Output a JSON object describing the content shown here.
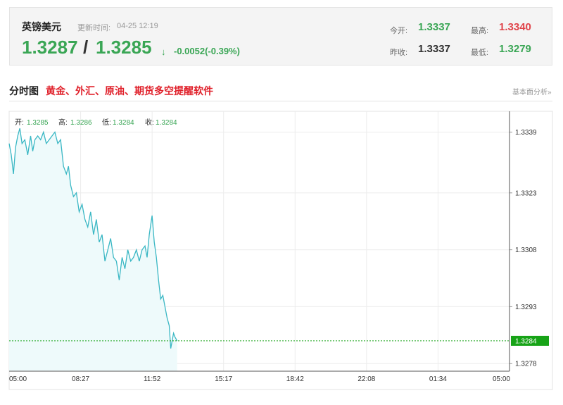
{
  "quote": {
    "name": "英镑美元",
    "update_label": "更新时间:",
    "update_time": "04-25 12:19",
    "bid": "1.3287",
    "slash": "/",
    "ask": "1.3285",
    "arrow": "↓",
    "change": "-0.0052(-0.39%)",
    "open_label": "今开:",
    "open": "1.3337",
    "high_label": "最高:",
    "high": "1.3340",
    "prev_close_label": "昨收:",
    "prev_close": "1.3337",
    "low_label": "最低:",
    "low": "1.3279"
  },
  "section": {
    "title": "分时图",
    "promo": "黄金、外汇、原油、期货多空提醒软件",
    "analysis_link": "基本面分析»"
  },
  "ohlc": {
    "open_label": "开:",
    "open": "1.3285",
    "high_label": "高:",
    "high": "1.3286",
    "low_label": "低:",
    "low": "1.3284",
    "close_label": "收:",
    "close": "1.3284"
  },
  "colors": {
    "line": "#3ab7c4",
    "fill": "#eefafb",
    "up": "#3aa655",
    "down": "#e0444a",
    "current_tag": "#17a317"
  },
  "chart_data": {
    "type": "line",
    "title": "",
    "xlabel": "",
    "ylabel": "",
    "x_ticks": [
      "05:00",
      "08:27",
      "11:52",
      "15:17",
      "18:42",
      "22:08",
      "01:34",
      "05:00"
    ],
    "y_ticks": [
      "1.3339",
      "1.3323",
      "1.3308",
      "1.3293",
      "1.3278"
    ],
    "ylim": [
      1.3276,
      1.33445
    ],
    "current_value": "1.3284",
    "grid": true,
    "series": [
      {
        "x": [
          0,
          3,
          6,
          9,
          12,
          15,
          18,
          22,
          26,
          30,
          33,
          36,
          40,
          44,
          48,
          52,
          56,
          60,
          64,
          68,
          72,
          76,
          80,
          83,
          86,
          90,
          94,
          98,
          102,
          106,
          110,
          114,
          118,
          122,
          126,
          130,
          134,
          138,
          142,
          146,
          150,
          154,
          158,
          162,
          166,
          170,
          174,
          178,
          182,
          186,
          190,
          193,
          196,
          200,
          203,
          206,
          209,
          212,
          215,
          218,
          221,
          224,
          226,
          228,
          230,
          232,
          235
        ],
        "y": [
          1.3336,
          1.3333,
          1.3328,
          1.3335,
          1.3338,
          1.334,
          1.3336,
          1.3337,
          1.3333,
          1.3338,
          1.3334,
          1.3337,
          1.3338,
          1.3337,
          1.3339,
          1.3336,
          1.3337,
          1.3338,
          1.3339,
          1.3336,
          1.3337,
          1.333,
          1.3328,
          1.333,
          1.3325,
          1.3322,
          1.3323,
          1.3318,
          1.332,
          1.3316,
          1.3314,
          1.3318,
          1.3312,
          1.3316,
          1.331,
          1.3312,
          1.3305,
          1.3308,
          1.3311,
          1.3306,
          1.3305,
          1.33,
          1.3306,
          1.3303,
          1.3308,
          1.3305,
          1.3306,
          1.3308,
          1.3305,
          1.3308,
          1.3309,
          1.3306,
          1.3312,
          1.3317,
          1.331,
          1.3306,
          1.33,
          1.3295,
          1.3296,
          1.3293,
          1.329,
          1.3288,
          1.3282,
          1.3284,
          1.3286,
          1.3285,
          1.3284
        ]
      }
    ]
  }
}
